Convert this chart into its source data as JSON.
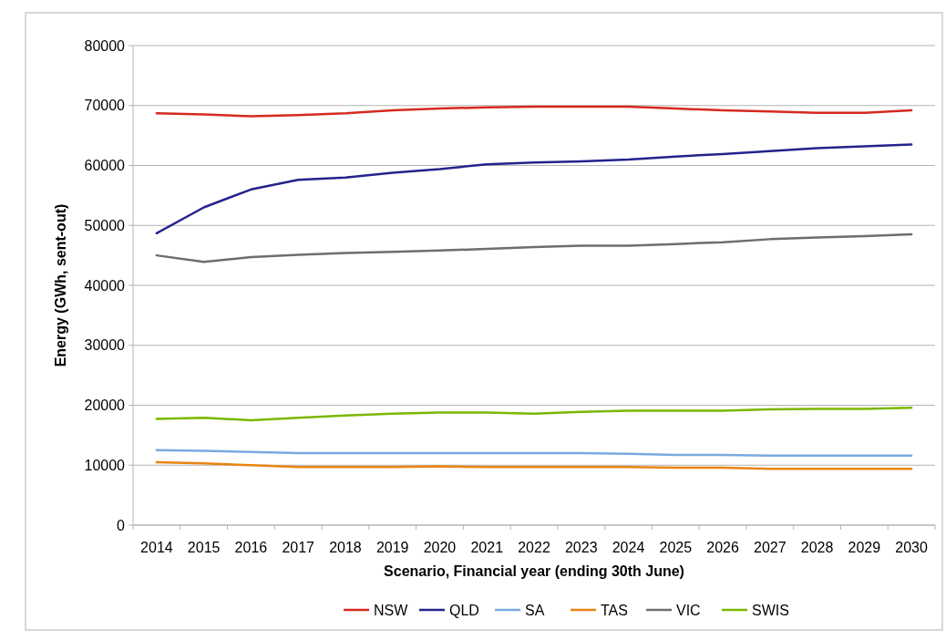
{
  "chart_data": {
    "type": "line",
    "xlabel": "Scenario, Financial year (ending 30th June)",
    "ylabel": "Energy (GWh, sent-out)",
    "categories": [
      "2014",
      "2015",
      "2016",
      "2017",
      "2018",
      "2019",
      "2020",
      "2021",
      "2022",
      "2023",
      "2024",
      "2025",
      "2026",
      "2027",
      "2028",
      "2029",
      "2030"
    ],
    "series": [
      {
        "name": "NSW",
        "color": "#d42a20",
        "values": [
          68700,
          68500,
          68200,
          68400,
          68700,
          69200,
          69500,
          69700,
          69800,
          69800,
          69800,
          69500,
          69200,
          69000,
          68800,
          68800,
          69200
        ]
      },
      {
        "name": "QLD",
        "color": "#24238c",
        "values": [
          48700,
          53000,
          56000,
          57600,
          58000,
          58800,
          59400,
          60200,
          60500,
          60700,
          61000,
          61500,
          61900,
          62400,
          62900,
          63200,
          63500
        ]
      },
      {
        "name": "SA",
        "color": "#7aaae0",
        "values": [
          12500,
          12400,
          12200,
          12000,
          12000,
          12000,
          12000,
          12000,
          12000,
          12000,
          11900,
          11700,
          11700,
          11600,
          11600,
          11600,
          11600
        ]
      },
      {
        "name": "TAS",
        "color": "#e98410",
        "values": [
          10500,
          10300,
          10000,
          9700,
          9700,
          9700,
          9800,
          9700,
          9700,
          9700,
          9700,
          9600,
          9600,
          9400,
          9400,
          9400,
          9400
        ]
      },
      {
        "name": "VIC",
        "color": "#6e6e6e",
        "values": [
          45000,
          43900,
          44700,
          45100,
          45400,
          45600,
          45800,
          46100,
          46400,
          46600,
          46600,
          46900,
          47200,
          47700,
          48000,
          48200,
          48500
        ]
      },
      {
        "name": "SWIS",
        "color": "#7ab800",
        "values": [
          17700,
          17900,
          17500,
          17900,
          18300,
          18600,
          18800,
          18800,
          18600,
          18900,
          19100,
          19100,
          19100,
          19300,
          19400,
          19400,
          19600
        ]
      }
    ],
    "ylim": [
      0,
      80000
    ],
    "yticks": [
      0,
      10000,
      20000,
      30000,
      40000,
      50000,
      60000,
      70000,
      80000
    ],
    "grid": "y",
    "legend": "bottom",
    "marker": "none",
    "line_style": "solid"
  }
}
